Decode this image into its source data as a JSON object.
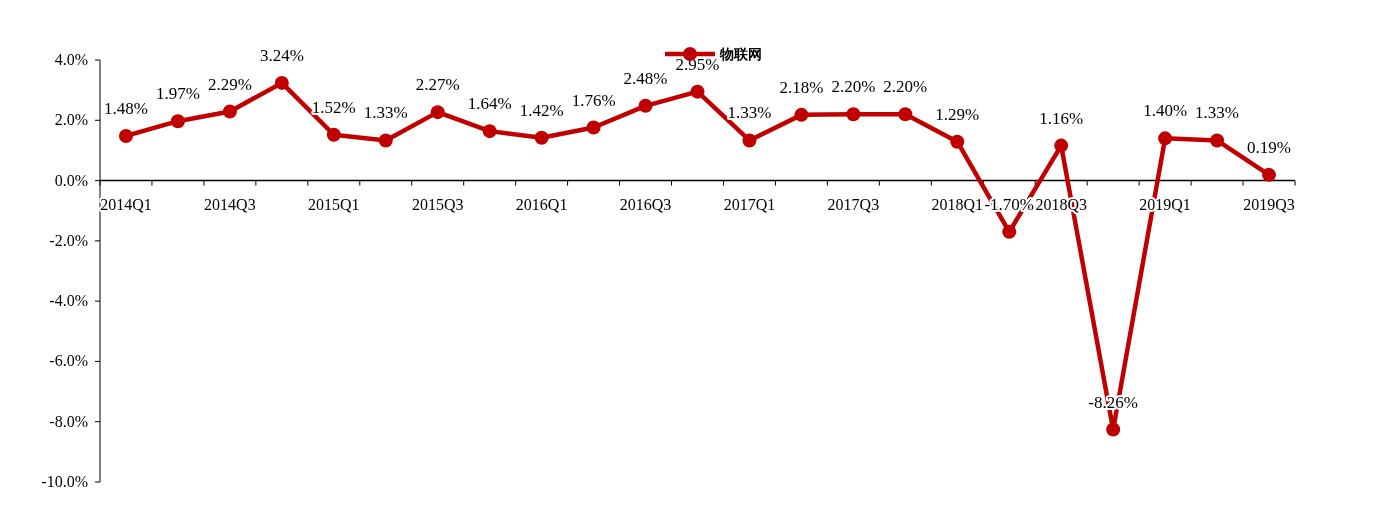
{
  "chart_data": {
    "type": "line",
    "categories": [
      "2014Q1",
      null,
      "2014Q3",
      null,
      "2015Q1",
      null,
      "2015Q3",
      null,
      "2016Q1",
      null,
      "2016Q3",
      null,
      "2017Q1",
      null,
      "2017Q3",
      null,
      "2018Q1",
      null,
      "2018Q3",
      null,
      "2019Q1",
      null,
      "2019Q3"
    ],
    "series": [
      {
        "name": "物联网",
        "color": "#c00000",
        "values": [
          1.48,
          1.97,
          2.29,
          3.24,
          1.52,
          1.33,
          2.27,
          1.64,
          1.42,
          1.76,
          2.48,
          2.95,
          1.33,
          2.18,
          2.2,
          2.2,
          1.29,
          -1.7,
          1.16,
          -8.26,
          1.4,
          1.33,
          0.19
        ],
        "value_labels": [
          "1.48%",
          "1.97%",
          "2.29%",
          "3.24%",
          "1.52%",
          "1.33%",
          "2.27%",
          "1.64%",
          "1.42%",
          "1.76%",
          "2.48%",
          "2.95%",
          "1.33%",
          "2.18%",
          "2.20%",
          "2.20%",
          "1.29%",
          "-1.70%",
          "1.16%",
          "-8.26%",
          "1.40%",
          "1.33%",
          "0.19%"
        ]
      }
    ],
    "ylim": [
      -10,
      4
    ],
    "yticks": [
      {
        "value": -10,
        "label": "-10.0%"
      },
      {
        "value": -8,
        "label": "-8.0%"
      },
      {
        "value": -6,
        "label": "-6.0%"
      },
      {
        "value": -4,
        "label": "-4.0%"
      },
      {
        "value": -2,
        "label": "-2.0%"
      },
      {
        "value": 0,
        "label": "0.0%"
      },
      {
        "value": 2,
        "label": "2.0%"
      },
      {
        "value": 4,
        "label": "4.0%"
      }
    ],
    "marker": "circle",
    "line_style": "solid",
    "grid": false,
    "legend": "top"
  }
}
